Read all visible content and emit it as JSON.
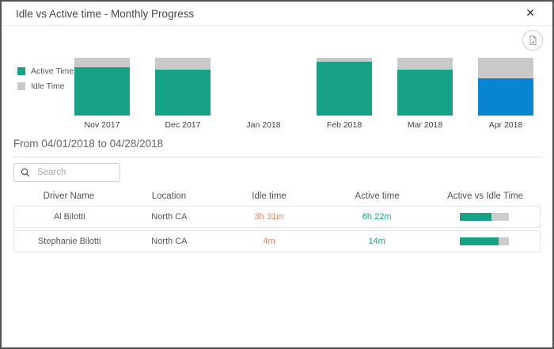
{
  "dialog": {
    "title": "Idle vs Active time - Monthly Progress",
    "close_label": "✕"
  },
  "chart_data": {
    "type": "bar",
    "subtype": "100%-stacked-column",
    "categories": [
      "Nov 2017",
      "Dec 2017",
      "Jan 2018",
      "Feb 2018",
      "Mar 2018",
      "Apr 2018"
    ],
    "series": [
      {
        "name": "Active Time",
        "values": [
          84,
          79,
          0,
          93,
          79,
          64
        ],
        "color": "#17a286"
      },
      {
        "name": "Idle Time",
        "values": [
          16,
          21,
          0,
          7,
          21,
          36
        ],
        "color": "#c9c9c9"
      }
    ],
    "selected_category": "Apr 2018",
    "selected_color": "#0984d3",
    "legend_position": "left",
    "ylim": [
      0,
      100
    ],
    "grid": false,
    "note": "Jan 2018 has no data; Apr 2018 is highlighted blue as the selected month"
  },
  "period": {
    "label": "From 04/01/2018 to 04/28/2018"
  },
  "search": {
    "placeholder": "Search"
  },
  "table": {
    "columns": [
      "Driver Name",
      "Location",
      "Idle time",
      "Active time",
      "Active vs Idle Time"
    ],
    "rows": [
      {
        "driver": "Al Bilotti",
        "location": "North CA",
        "idle": "3h 31m",
        "active": "6h 22m",
        "active_pct": 64
      },
      {
        "driver": "Stephanie Bilotti",
        "location": "North CA",
        "idle": "4m",
        "active": "14m",
        "active_pct": 78
      }
    ]
  },
  "colors": {
    "active": "#17a286",
    "idle_bar": "#c9c9c9",
    "selected_bar": "#0984d3",
    "idle_text": "#e8825f",
    "progress_track": "#cccccc"
  }
}
